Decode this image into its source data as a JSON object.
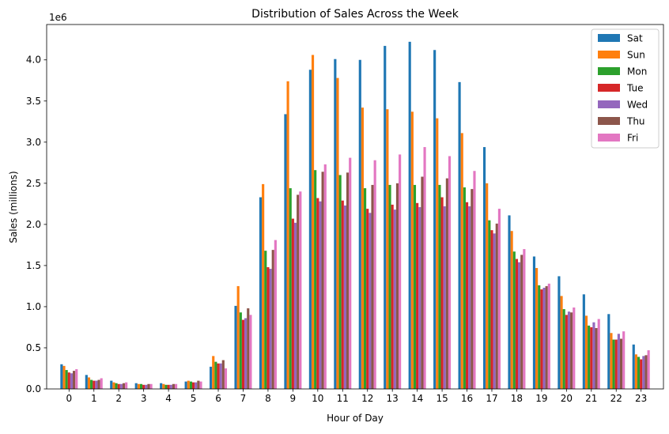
{
  "chart_data": {
    "type": "bar",
    "title": "Distribution of Sales Across the Week",
    "xlabel": "Hour of Day",
    "ylabel": "Sales (millions)",
    "offset_text": "1e6",
    "categories": [
      "0",
      "1",
      "2",
      "3",
      "4",
      "5",
      "6",
      "7",
      "8",
      "9",
      "10",
      "11",
      "12",
      "13",
      "14",
      "15",
      "16",
      "17",
      "18",
      "19",
      "20",
      "21",
      "22",
      "23"
    ],
    "ylim": [
      0,
      4430000
    ],
    "yticks": [
      0,
      500000,
      1000000,
      1500000,
      2000000,
      2500000,
      3000000,
      3500000,
      4000000
    ],
    "ytick_labels": [
      "0.0",
      "0.5",
      "1.0",
      "1.5",
      "2.0",
      "2.5",
      "3.0",
      "3.5",
      "4.0"
    ],
    "grid": false,
    "legend_position": "top-right",
    "series": [
      {
        "name": "Sat",
        "color": "#1f77b4",
        "values": [
          300000,
          170000,
          100000,
          70000,
          70000,
          90000,
          270000,
          1010000,
          2330000,
          3340000,
          3880000,
          4010000,
          4000000,
          4170000,
          4220000,
          4120000,
          3730000,
          2940000,
          2110000,
          1610000,
          1370000,
          1150000,
          910000,
          540000
        ]
      },
      {
        "name": "Sun",
        "color": "#ff7f0e",
        "values": [
          280000,
          140000,
          80000,
          60000,
          60000,
          100000,
          400000,
          1250000,
          2490000,
          3740000,
          4060000,
          3780000,
          3420000,
          3400000,
          3370000,
          3290000,
          3110000,
          2500000,
          1920000,
          1470000,
          1130000,
          890000,
          680000,
          420000
        ]
      },
      {
        "name": "Mon",
        "color": "#2ca02c",
        "values": [
          230000,
          110000,
          70000,
          60000,
          50000,
          90000,
          330000,
          930000,
          1680000,
          2440000,
          2660000,
          2600000,
          2440000,
          2480000,
          2480000,
          2480000,
          2450000,
          2050000,
          1670000,
          1260000,
          970000,
          770000,
          600000,
          390000
        ]
      },
      {
        "name": "Tue",
        "color": "#d62728",
        "values": [
          200000,
          100000,
          60000,
          50000,
          50000,
          80000,
          310000,
          840000,
          1480000,
          2070000,
          2320000,
          2290000,
          2190000,
          2240000,
          2260000,
          2330000,
          2270000,
          1930000,
          1580000,
          1210000,
          900000,
          750000,
          600000,
          360000
        ]
      },
      {
        "name": "Wed",
        "color": "#9467bd",
        "values": [
          190000,
          100000,
          60000,
          50000,
          50000,
          80000,
          310000,
          860000,
          1460000,
          2020000,
          2280000,
          2230000,
          2140000,
          2180000,
          2210000,
          2220000,
          2220000,
          1890000,
          1540000,
          1230000,
          940000,
          810000,
          670000,
          400000
        ]
      },
      {
        "name": "Thu",
        "color": "#8c564b",
        "values": [
          220000,
          110000,
          70000,
          60000,
          60000,
          100000,
          350000,
          980000,
          1690000,
          2360000,
          2640000,
          2630000,
          2480000,
          2500000,
          2580000,
          2560000,
          2430000,
          2010000,
          1630000,
          1250000,
          930000,
          740000,
          610000,
          410000
        ]
      },
      {
        "name": "Fri",
        "color": "#e377c2",
        "values": [
          240000,
          130000,
          80000,
          60000,
          60000,
          90000,
          250000,
          900000,
          1810000,
          2400000,
          2730000,
          2810000,
          2780000,
          2850000,
          2940000,
          2830000,
          2650000,
          2190000,
          1700000,
          1280000,
          990000,
          850000,
          700000,
          470000
        ]
      }
    ]
  }
}
